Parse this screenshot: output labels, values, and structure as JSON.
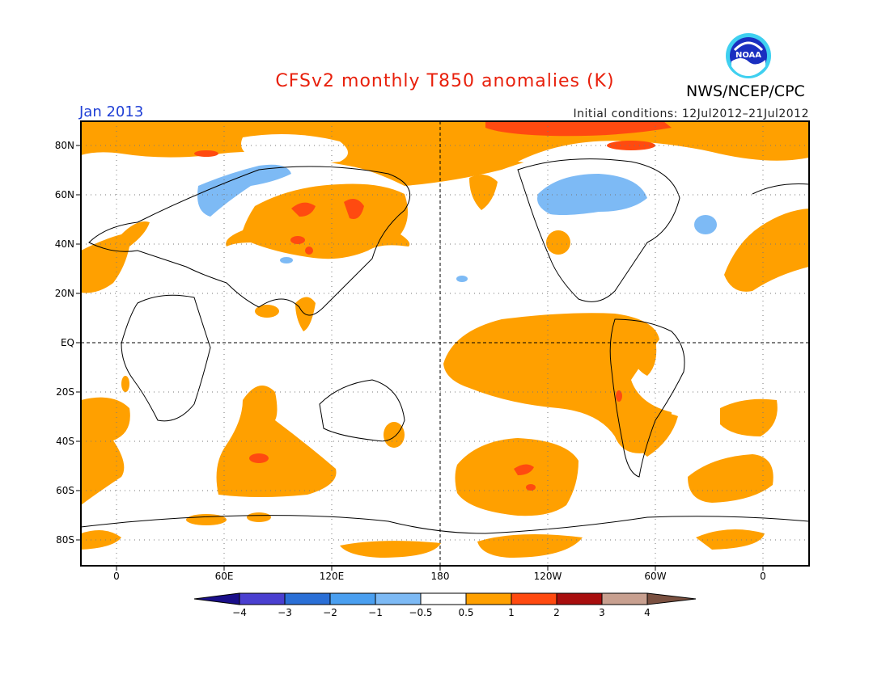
{
  "title": "CFSv2 monthly T850 anomalies (K)",
  "valid_month": "Jan 2013",
  "initial_conditions": "Initial conditions: 12Jul2012–21Jul2012",
  "agency": "NWS/NCEP/CPC",
  "logo_text": "NOAA",
  "lat_labels": [
    "80N",
    "60N",
    "40N",
    "20N",
    "EQ",
    "20S",
    "40S",
    "60S",
    "80S"
  ],
  "lon_labels": [
    "0",
    "60E",
    "120E",
    "180",
    "120W",
    "60W",
    "0"
  ],
  "colorbar": {
    "labels": [
      "−4",
      "−3",
      "−2",
      "−1",
      "−0.5",
      "0.5",
      "1",
      "2",
      "3",
      "4"
    ],
    "colors": [
      "#1a0f8a",
      "#4a3fd0",
      "#2a6fd6",
      "#4a9ff0",
      "#7dbaf5",
      "#ffffff",
      "#ffa000",
      "#ff4a10",
      "#a80e0e",
      "#c8a090",
      "#7a5040"
    ]
  },
  "anomaly_colors": {
    "warm1": "#ffa000",
    "warm2": "#ff4a10",
    "cool1": "#7dbaf5"
  }
}
